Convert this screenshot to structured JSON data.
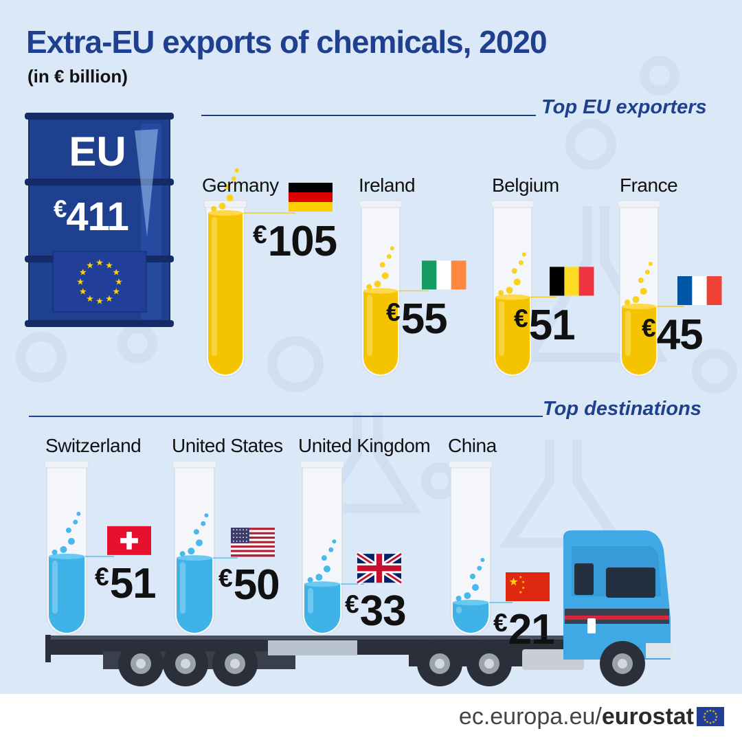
{
  "title": "Extra-EU exports of chemicals, 2020",
  "subtitle": "(in € billion)",
  "eu_total": {
    "label": "EU",
    "currency": "€",
    "value": "411"
  },
  "sections": {
    "exporters_label": "Top EU exporters",
    "destinations_label": "Top destinations"
  },
  "footer": {
    "domain": "ec.europa.eu/",
    "brand": "eurostat"
  },
  "colors": {
    "title": "#1f3f8f",
    "exporter_liquid": "#f5c400",
    "destination_liquid": "#3fb3e8",
    "background": "#dbe8f7",
    "barrel": "#1f3f8f"
  },
  "chart_data": [
    {
      "type": "bar",
      "title": "Top EU exporters",
      "categories": [
        "Germany",
        "Ireland",
        "Belgium",
        "France"
      ],
      "values": [
        105,
        55,
        51,
        45
      ],
      "value_labels": [
        "105",
        "55",
        "51",
        "45"
      ],
      "currency": "€",
      "flags": [
        "flag-germany",
        "flag-ireland",
        "flag-belgium",
        "flag-france"
      ]
    },
    {
      "type": "bar",
      "title": "Top destinations",
      "categories": [
        "Switzerland",
        "United States",
        "United Kingdom",
        "China"
      ],
      "values": [
        51,
        50,
        33,
        21
      ],
      "value_labels": [
        "51",
        "50",
        "33",
        "21"
      ],
      "currency": "€",
      "flags": [
        "flag-switzerland",
        "flag-united-states",
        "flag-united-kingdom",
        "flag-china"
      ]
    }
  ]
}
